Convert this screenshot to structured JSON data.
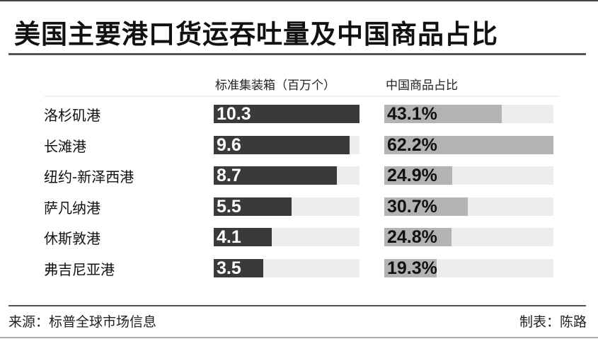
{
  "chart_data": {
    "type": "bar",
    "title": "美国主要港口货运吞吐量及中国商品占比",
    "columns": [
      "标准集装箱（百万个）",
      "中国商品占比"
    ],
    "categories": [
      "洛杉矶港",
      "长滩港",
      "纽约-新泽西港",
      "萨凡纳港",
      "休斯敦港",
      "弗吉尼亚港"
    ],
    "series": [
      {
        "name": "标准集装箱（百万个）",
        "values": [
          10.3,
          9.6,
          8.7,
          5.5,
          4.1,
          3.5
        ],
        "labels": [
          "10.3",
          "9.6",
          "8.7",
          "5.5",
          "4.1",
          "3.5"
        ],
        "color": "#3a3a3a",
        "label_color": "#ffffff"
      },
      {
        "name": "中国商品占比",
        "values": [
          43.1,
          62.2,
          24.9,
          30.7,
          24.8,
          19.3
        ],
        "labels": [
          "43.1%",
          "62.2%",
          "24.9%",
          "30.7%",
          "24.8%",
          "19.3%"
        ],
        "color": "#b3b3b3",
        "label_color": "#111111"
      }
    ],
    "track_color": "#ececec"
  },
  "footer": {
    "source": "来源：标普全球市场信息",
    "maker": "制表：陈路"
  }
}
